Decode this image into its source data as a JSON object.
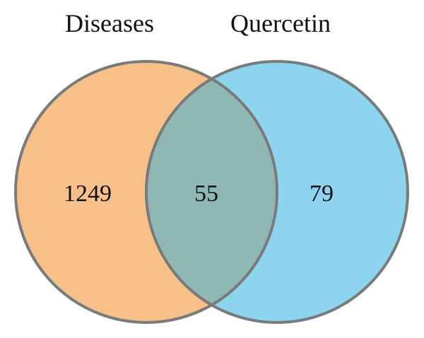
{
  "diagram": {
    "type": "venn",
    "sets": [
      {
        "label": "Diseases",
        "only_count": "1249",
        "fill": "#f7c089",
        "stroke": "#7a7a7a"
      },
      {
        "label": "Quercetin",
        "only_count": "79",
        "fill": "#8dd4f0",
        "stroke": "#7a7a7a"
      }
    ],
    "intersection": {
      "count": "55",
      "fill": "#8fb8b4"
    }
  }
}
